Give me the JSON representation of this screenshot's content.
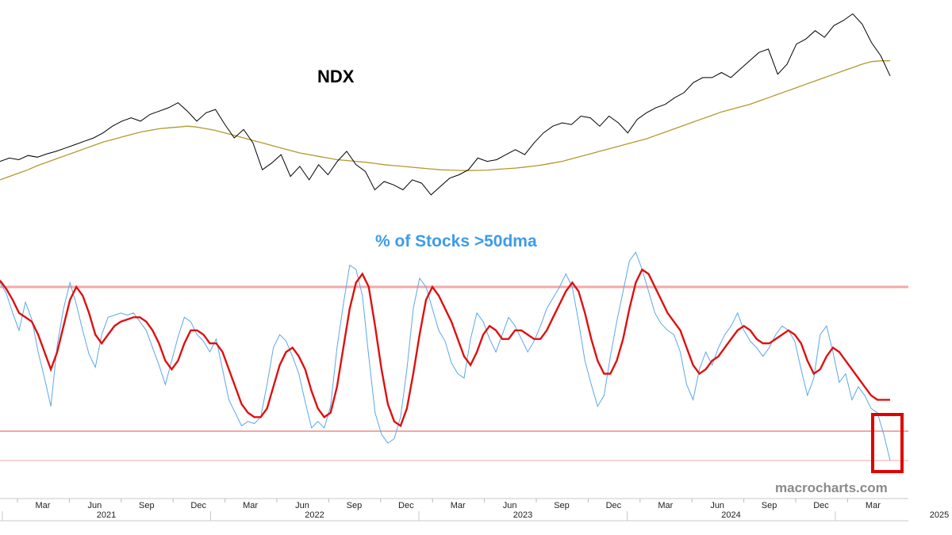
{
  "colors": {
    "price": "#000000",
    "ma200": "#b09a2e",
    "breadth_raw": "#5aa8ea",
    "breadth_smooth": "#dd1111",
    "ref_lines": "#f3a8a8",
    "highlight_box": "#e00000",
    "breadth_title": "#3d9be9",
    "watermark": "#8a8a8a"
  },
  "chart_data": [
    {
      "type": "line",
      "title": "NDX",
      "series": [
        {
          "values": [
            12900,
            13100,
            13000,
            13250,
            13150,
            13350,
            13500,
            13700,
            13900,
            14100,
            14300,
            14600,
            15000,
            15300,
            15500,
            15300,
            15700,
            15900,
            16100,
            16400,
            15900,
            15300,
            15800,
            16000,
            15100,
            14300,
            14800,
            14000,
            12400,
            12800,
            13300,
            12000,
            12600,
            11800,
            12700,
            12100,
            12900,
            13500,
            12700,
            12300,
            11200,
            11700,
            11500,
            11200,
            11800,
            11600,
            10900,
            11400,
            11900,
            12100,
            12400,
            13100,
            12900,
            13000,
            13300,
            13600,
            13300,
            14000,
            14600,
            15000,
            15200,
            15100,
            15600,
            15500,
            15000,
            15600,
            15200,
            14600,
            15400,
            15800,
            16100,
            16300,
            16700,
            17000,
            17600,
            17900,
            17900,
            18200,
            17900,
            18400,
            18900,
            19400,
            19600,
            18100,
            18700,
            19900,
            20200,
            20700,
            20300,
            21000,
            21300,
            21700,
            21100,
            20000,
            19200,
            18000
          ]
        },
        {
          "values": [
            11800,
            12000,
            12200,
            12400,
            12650,
            12850,
            13050,
            13250,
            13450,
            13650,
            13850,
            14050,
            14200,
            14350,
            14500,
            14650,
            14750,
            14850,
            14900,
            14950,
            15000,
            14950,
            14850,
            14750,
            14600,
            14450,
            14300,
            14150,
            14000,
            13850,
            13700,
            13550,
            13400,
            13300,
            13200,
            13100,
            13000,
            12950,
            12900,
            12850,
            12780,
            12700,
            12650,
            12600,
            12550,
            12500,
            12450,
            12400,
            12380,
            12360,
            12350,
            12360,
            12380,
            12420,
            12460,
            12500,
            12560,
            12620,
            12700,
            12800,
            12900,
            13050,
            13200,
            13350,
            13500,
            13650,
            13800,
            13950,
            14100,
            14250,
            14450,
            14650,
            14850,
            15050,
            15250,
            15450,
            15650,
            15850,
            16000,
            16150,
            16300,
            16500,
            16700,
            16900,
            17100,
            17300,
            17500,
            17700,
            17900,
            18100,
            18300,
            18500,
            18700,
            18850,
            18900,
            18900
          ]
        }
      ],
      "time_axis": {
        "months": [
          "Mar",
          "Jun",
          "Sep",
          "Dec",
          "Mar",
          "Jun",
          "Sep",
          "Dec",
          "Mar",
          "Jun",
          "Sep",
          "Dec",
          "Mar",
          "Jun",
          "Sep",
          "Dec",
          "Mar"
        ],
        "years": [
          "2021",
          "2022",
          "2023",
          "2024",
          "2025"
        ]
      }
    },
    {
      "type": "line",
      "title": "% of Stocks >50dma",
      "series": [
        {
          "values": [
            82,
            77,
            68,
            60,
            73,
            65,
            50,
            38,
            25,
            53,
            70,
            82,
            72,
            60,
            49,
            43,
            58,
            66,
            67,
            68,
            67,
            68,
            64,
            60,
            52,
            44,
            35,
            46,
            57,
            66,
            64,
            58,
            55,
            50,
            56,
            42,
            28,
            22,
            16,
            18,
            17,
            20,
            35,
            52,
            58,
            55,
            48,
            40,
            27,
            15,
            18,
            15,
            25,
            52,
            72,
            90,
            88,
            76,
            48,
            22,
            12,
            8,
            10,
            20,
            42,
            70,
            84,
            80,
            70,
            60,
            55,
            45,
            40,
            38,
            56,
            68,
            64,
            56,
            50,
            58,
            66,
            62,
            56,
            50,
            55,
            62,
            70,
            75,
            80,
            86,
            80,
            64,
            46,
            35,
            25,
            30,
            48,
            64,
            78,
            92,
            96,
            88,
            78,
            68,
            63,
            60,
            58,
            50,
            35,
            28,
            42,
            50,
            44,
            52,
            58,
            62,
            68,
            60,
            55,
            52,
            48,
            52,
            58,
            62,
            60,
            55,
            42,
            30,
            38,
            58,
            62,
            50,
            36,
            40,
            28,
            34,
            30,
            24,
            22,
            12,
            0
          ],
          "smooth": [
            83,
            79,
            74,
            68,
            66,
            64,
            58,
            50,
            42,
            50,
            62,
            74,
            80,
            76,
            68,
            58,
            54,
            58,
            62,
            64,
            65,
            66,
            66,
            64,
            60,
            54,
            46,
            42,
            46,
            54,
            60,
            60,
            58,
            54,
            54,
            50,
            42,
            34,
            26,
            22,
            20,
            20,
            24,
            34,
            44,
            50,
            52,
            48,
            42,
            32,
            24,
            20,
            22,
            34,
            52,
            70,
            82,
            86,
            80,
            62,
            42,
            26,
            18,
            16,
            24,
            40,
            58,
            74,
            80,
            76,
            70,
            64,
            56,
            48,
            44,
            50,
            58,
            62,
            60,
            56,
            56,
            60,
            60,
            58,
            56,
            56,
            60,
            66,
            72,
            78,
            82,
            78,
            68,
            56,
            46,
            40,
            40,
            46,
            56,
            70,
            82,
            88,
            86,
            80,
            74,
            68,
            64,
            60,
            52,
            44,
            40,
            42,
            46,
            48,
            52,
            56,
            60,
            62,
            60,
            56,
            54,
            54,
            56,
            58,
            60,
            58,
            54,
            46,
            40,
            42,
            48,
            52,
            50,
            46,
            42,
            38,
            34,
            30,
            28,
            28,
            28
          ]
        }
      ],
      "reference_lines": [
        80,
        20,
        10
      ]
    }
  ],
  "labels": {
    "ndx": "NDX",
    "breadth": "% of Stocks >50dma",
    "watermark": "macrocharts.com"
  }
}
